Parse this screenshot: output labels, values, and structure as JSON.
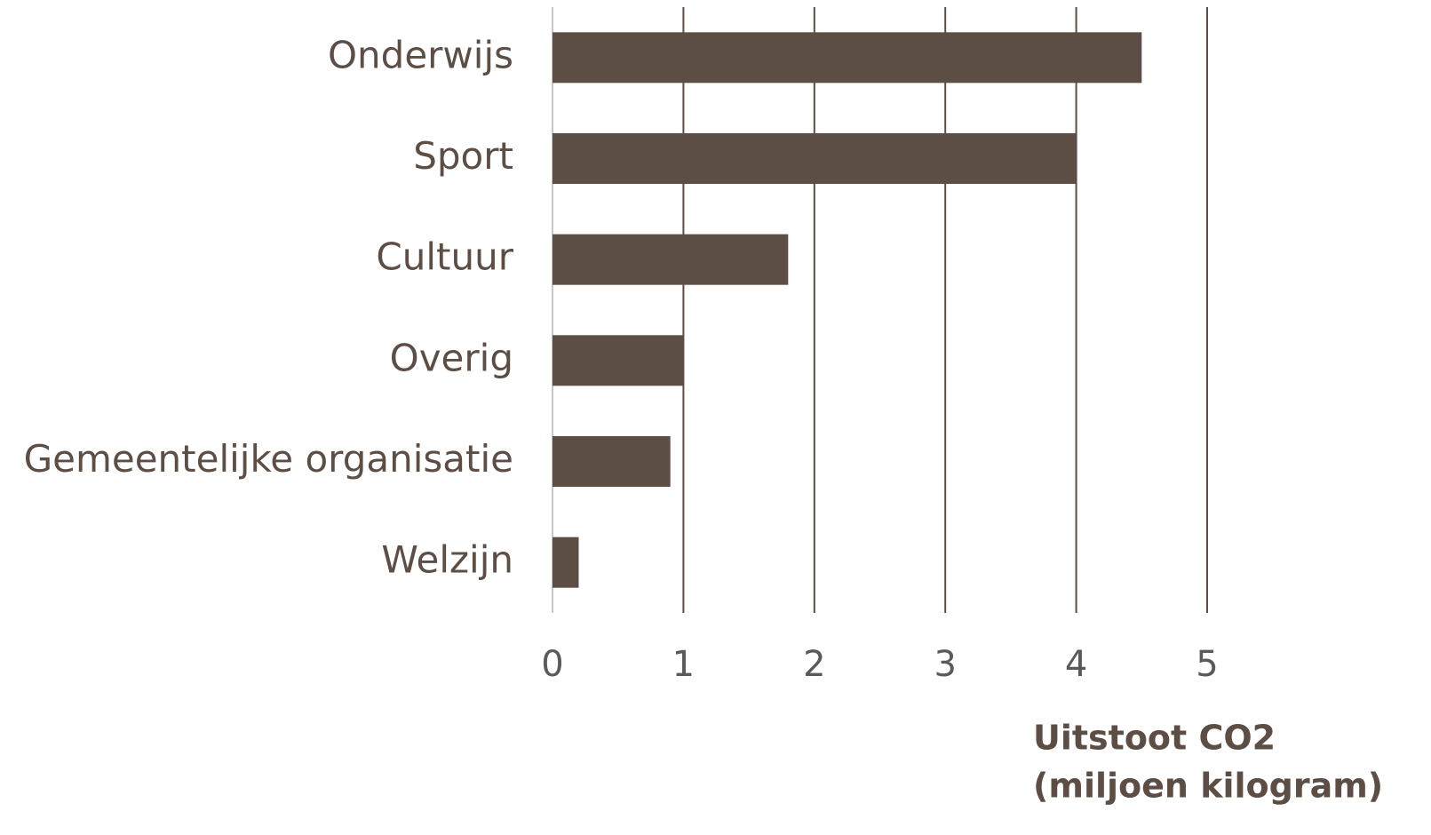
{
  "chart_data": {
    "type": "hbar",
    "categories": [
      "Onderwijs",
      "Sport",
      "Cultuur",
      "Overig",
      "Gemeentelijke organisatie",
      "Welzijn"
    ],
    "values": [
      4.5,
      4.0,
      1.8,
      1.0,
      0.9,
      0.2
    ],
    "color": "#5c4d45",
    "xlim": [
      0,
      5
    ],
    "xticks": [
      0,
      1,
      2,
      3,
      4,
      5
    ],
    "grid": true,
    "x_label": [
      "Uitstoot CO2",
      "(miljoen kilogram)"
    ]
  }
}
